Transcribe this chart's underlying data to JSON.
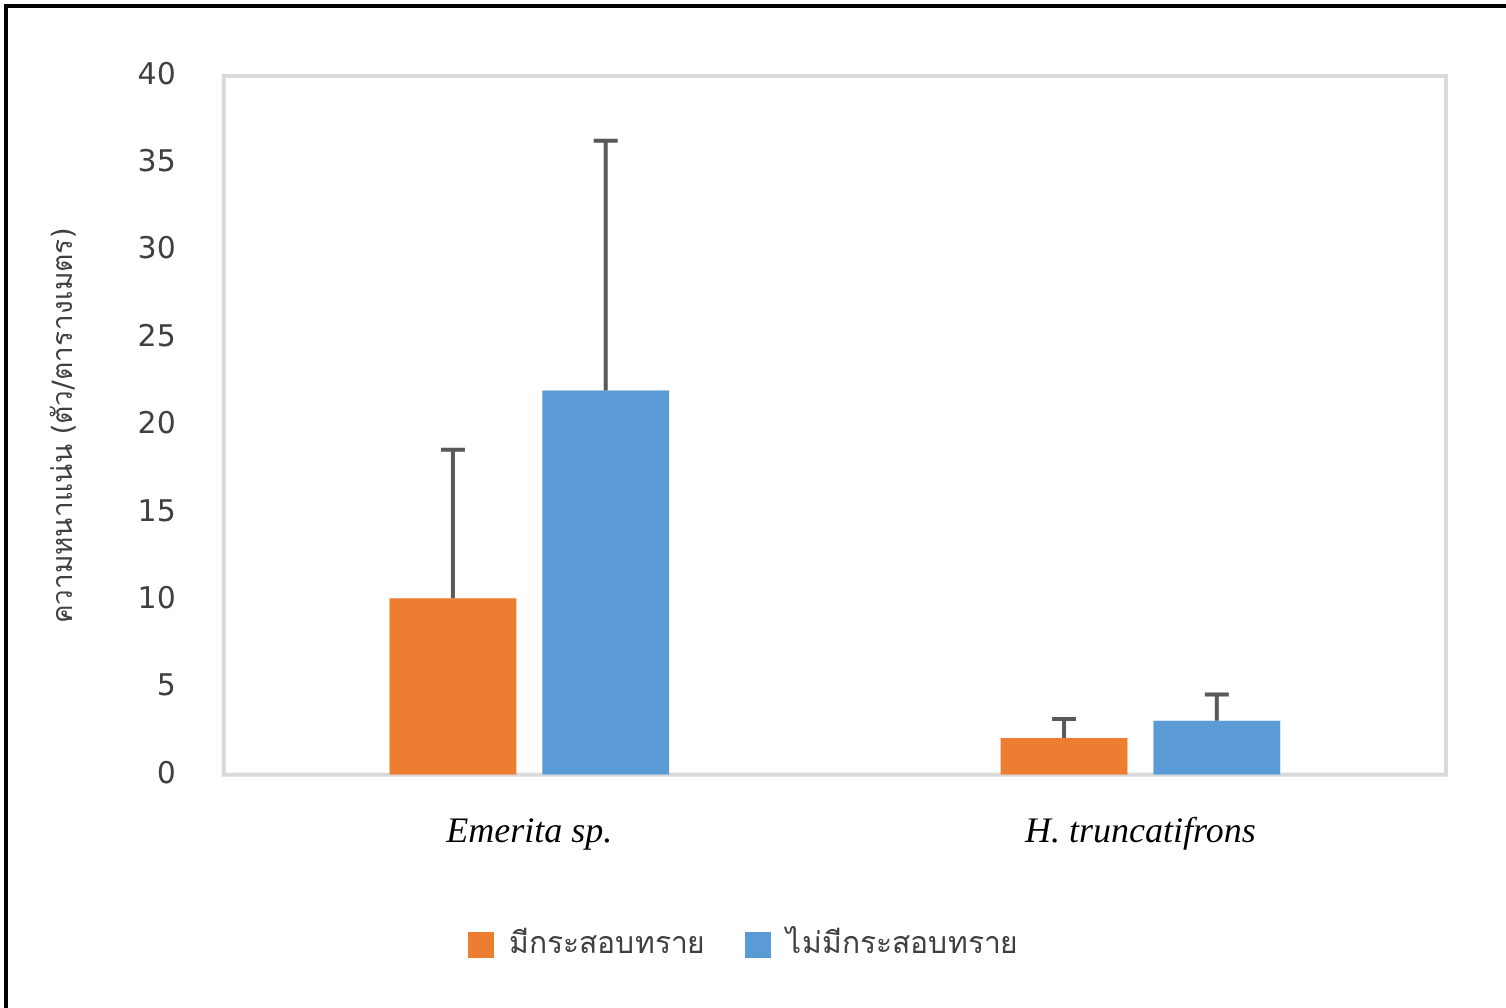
{
  "chart_data": {
    "type": "bar",
    "ylabel": "ความหนาแน่น (ตัว/ตารางเมตร)",
    "categories": [
      "Emerita sp.",
      "H. truncatifrons"
    ],
    "series": [
      {
        "name": "มีกระสอบทราย",
        "color": "#ed7d31",
        "values": [
          10.1,
          2.1
        ],
        "errors": [
          [
            10.1,
            18.6
          ],
          [
            2.1,
            3.2
          ]
        ]
      },
      {
        "name": "ไม่มีกระสอบทราย",
        "color": "#5b9bd5",
        "values": [
          22.0,
          3.1
        ],
        "errors": [
          [
            22.0,
            36.3
          ],
          [
            3.1,
            4.6
          ]
        ]
      }
    ],
    "ylim": [
      0,
      40
    ],
    "yticks": [
      0,
      5,
      10,
      15,
      20,
      25,
      30,
      35,
      40
    ],
    "grid": false,
    "legend": "bottom"
  }
}
